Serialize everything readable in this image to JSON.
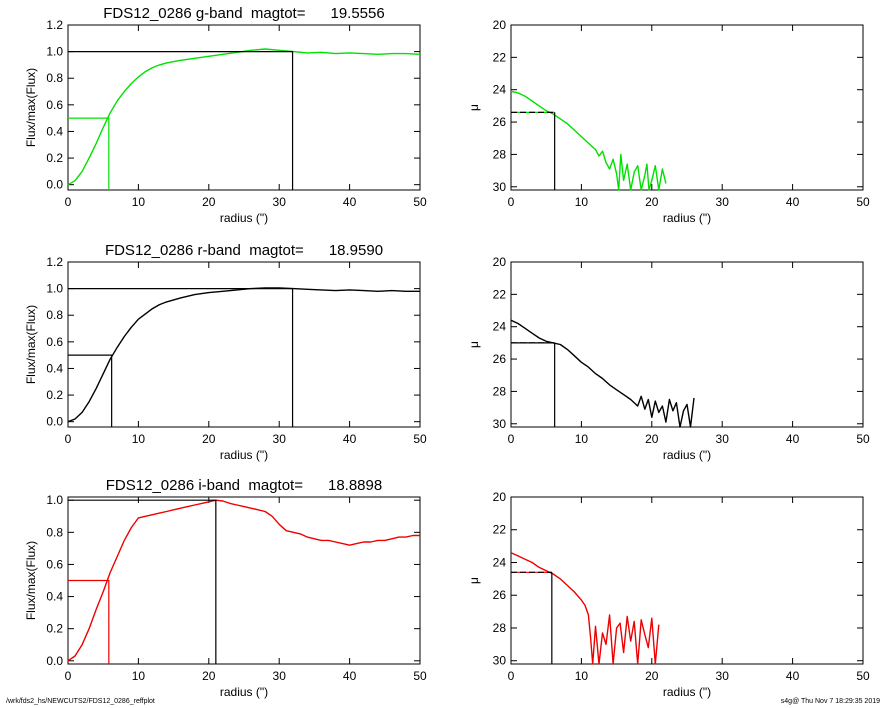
{
  "footer": {
    "left": "/wrk/fds2_hs/NEWCUTS2/FDS12_0286_reffplot",
    "right": "s4g@  Thu Nov  7 18:29:35 2019"
  },
  "chart_data": [
    {
      "type": "line",
      "panel": "growth-g",
      "title": "FDS12_0286 g-band  magtot=      19.5556",
      "color": "#00e000",
      "xlabel": "radius (\")",
      "ylabel": "Flux/max(Flux)",
      "xlim": [
        0,
        50
      ],
      "ylim": [
        -0.04,
        1.2
      ],
      "xticks": [
        "0",
        "10",
        "20",
        "30",
        "40",
        "50"
      ],
      "yticks": [
        "0.0",
        "0.2",
        "0.4",
        "0.6",
        "0.8",
        "1.0",
        "1.2"
      ],
      "xtick_values": [
        0,
        10,
        20,
        30,
        40,
        50
      ],
      "ytick_values": [
        0,
        0.2,
        0.4,
        0.6,
        0.8,
        1.0,
        1.2
      ],
      "series": [
        {
          "x": [
            0,
            1,
            2,
            3,
            4,
            5,
            6,
            7,
            8,
            9,
            10,
            11,
            12,
            13,
            14,
            16,
            18,
            20,
            22,
            24,
            26,
            28,
            30,
            32,
            34,
            36,
            38,
            40,
            42,
            44,
            46,
            48,
            50
          ],
          "values": [
            0,
            0.03,
            0.1,
            0.2,
            0.31,
            0.43,
            0.54,
            0.63,
            0.7,
            0.76,
            0.81,
            0.85,
            0.88,
            0.9,
            0.915,
            0.935,
            0.95,
            0.965,
            0.98,
            0.995,
            1.01,
            1.02,
            1.01,
            1.0,
            0.99,
            0.995,
            0.985,
            0.99,
            0.985,
            0.98,
            0.985,
            0.985,
            0.98
          ]
        }
      ],
      "half_light": {
        "radius": 5.8,
        "flux": 0.5
      },
      "total": {
        "radius": 31.9,
        "flux": 1.0
      }
    },
    {
      "type": "line",
      "panel": "profile-g",
      "title": "",
      "color": "#00e000",
      "xlabel": "radius (\")",
      "ylabel": "μ",
      "xlim": [
        0,
        50
      ],
      "ylim": [
        30.2,
        20
      ],
      "xticks": [
        "0",
        "10",
        "20",
        "30",
        "40",
        "50"
      ],
      "yticks": [
        "20",
        "22",
        "24",
        "26",
        "28",
        "30"
      ],
      "xtick_values": [
        0,
        10,
        20,
        30,
        40,
        50
      ],
      "ytick_values": [
        20,
        22,
        24,
        26,
        28,
        30
      ],
      "series": [
        {
          "x": [
            0,
            1,
            2,
            3,
            4,
            5,
            5.5,
            6,
            7,
            8,
            9,
            10,
            11,
            12,
            12.5,
            13,
            13.5,
            14,
            14.5,
            15,
            15.3,
            15.6,
            16,
            16.5,
            17,
            17.5,
            18,
            18.5,
            19,
            19.3,
            19.6,
            20,
            20.5,
            21,
            21.5,
            22
          ],
          "values": [
            24.1,
            24.2,
            24.4,
            24.7,
            25.0,
            25.3,
            25.4,
            25.5,
            25.8,
            26.1,
            26.5,
            26.9,
            27.3,
            27.7,
            28.1,
            27.8,
            28.5,
            28.9,
            28.3,
            29.2,
            30.2,
            28.0,
            29.6,
            28.6,
            30.2,
            29.1,
            28.7,
            30.2,
            29.3,
            28.6,
            30.2,
            29.6,
            28.7,
            30.2,
            28.9,
            29.8
          ]
        }
      ],
      "half_light": {
        "radius": 6.2,
        "mu": 25.4
      },
      "mean_line": {
        "x0": 0,
        "x1": 6.2,
        "mu": 25.4
      }
    },
    {
      "type": "line",
      "panel": "growth-r",
      "title": "FDS12_0286 r-band  magtot=      18.9590",
      "color": "#000000",
      "xlabel": "radius (\")",
      "ylabel": "Flux/max(Flux)",
      "xlim": [
        0,
        50
      ],
      "ylim": [
        -0.04,
        1.2
      ],
      "xticks": [
        "0",
        "10",
        "20",
        "30",
        "40",
        "50"
      ],
      "yticks": [
        "0.0",
        "0.2",
        "0.4",
        "0.6",
        "0.8",
        "1.0",
        "1.2"
      ],
      "xtick_values": [
        0,
        10,
        20,
        30,
        40,
        50
      ],
      "ytick_values": [
        0,
        0.2,
        0.4,
        0.6,
        0.8,
        1.0,
        1.2
      ],
      "series": [
        {
          "x": [
            0,
            1,
            2,
            3,
            4,
            5,
            6,
            7,
            8,
            9,
            10,
            11,
            12,
            13,
            14,
            16,
            18,
            20,
            22,
            24,
            26,
            28,
            30,
            32,
            34,
            36,
            38,
            40,
            42,
            44,
            46,
            48,
            50
          ],
          "values": [
            0,
            0.02,
            0.07,
            0.15,
            0.25,
            0.36,
            0.47,
            0.56,
            0.64,
            0.71,
            0.77,
            0.81,
            0.85,
            0.88,
            0.9,
            0.93,
            0.955,
            0.97,
            0.98,
            0.99,
            1.0,
            1.005,
            1.005,
            1.0,
            0.995,
            0.99,
            0.985,
            0.99,
            0.985,
            0.98,
            0.985,
            0.98,
            0.98
          ]
        }
      ],
      "half_light": {
        "radius": 6.2,
        "flux": 0.5
      },
      "total": {
        "radius": 31.9,
        "flux": 1.0
      }
    },
    {
      "type": "line",
      "panel": "profile-r",
      "title": "",
      "color": "#000000",
      "xlabel": "radius (\")",
      "ylabel": "μ",
      "xlim": [
        0,
        50
      ],
      "ylim": [
        30.2,
        20
      ],
      "xticks": [
        "0",
        "10",
        "20",
        "30",
        "40",
        "50"
      ],
      "yticks": [
        "20",
        "22",
        "24",
        "26",
        "28",
        "30"
      ],
      "xtick_values": [
        0,
        10,
        20,
        30,
        40,
        50
      ],
      "ytick_values": [
        20,
        22,
        24,
        26,
        28,
        30
      ],
      "series": [
        {
          "x": [
            0,
            1,
            2,
            3,
            4,
            5,
            6,
            7,
            8,
            9,
            10,
            11,
            12,
            13,
            14,
            15,
            16,
            17,
            18,
            18.5,
            19,
            19.5,
            20,
            20.5,
            21,
            21.5,
            22,
            22.5,
            23,
            23.5,
            24,
            24.5,
            25,
            25.5,
            26
          ],
          "values": [
            23.6,
            23.8,
            24.1,
            24.4,
            24.7,
            24.9,
            25.0,
            25.1,
            25.4,
            25.8,
            26.2,
            26.5,
            26.9,
            27.2,
            27.6,
            27.9,
            28.2,
            28.5,
            28.9,
            28.3,
            29.1,
            28.5,
            29.6,
            28.6,
            29.3,
            28.9,
            29.9,
            28.5,
            29.2,
            28.7,
            30.2,
            29.2,
            28.8,
            30.2,
            28.4
          ]
        }
      ],
      "half_light": {
        "radius": 6.2,
        "mu": 25.0
      },
      "mean_line": {
        "x0": 0,
        "x1": 6.2,
        "mu": 25.0
      }
    },
    {
      "type": "line",
      "panel": "growth-i",
      "title": "FDS12_0286 i-band  magtot=      18.8898",
      "color": "#ee0000",
      "xlabel": "radius (\")",
      "ylabel": "Flux/max(Flux)",
      "xlim": [
        0,
        50
      ],
      "ylim": [
        -0.02,
        1.02
      ],
      "xticks": [
        "0",
        "10",
        "20",
        "30",
        "40",
        "50"
      ],
      "yticks": [
        "0.0",
        "0.2",
        "0.4",
        "0.6",
        "0.8",
        "1.0"
      ],
      "xtick_values": [
        0,
        10,
        20,
        30,
        40,
        50
      ],
      "ytick_values": [
        0,
        0.2,
        0.4,
        0.6,
        0.8,
        1.0
      ],
      "series": [
        {
          "x": [
            0,
            1,
            2,
            3,
            4,
            5,
            6,
            7,
            8,
            9,
            10,
            11,
            12,
            13,
            14,
            15,
            16,
            17,
            18,
            19,
            20,
            21,
            22,
            23,
            24,
            25,
            26,
            27,
            28,
            29,
            30,
            31,
            32,
            33,
            34,
            35,
            36,
            37,
            38,
            39,
            40,
            41,
            42,
            43,
            44,
            45,
            46,
            47,
            48,
            49,
            50
          ],
          "values": [
            0,
            0.03,
            0.1,
            0.2,
            0.32,
            0.43,
            0.55,
            0.65,
            0.75,
            0.83,
            0.89,
            0.9,
            0.91,
            0.92,
            0.93,
            0.94,
            0.95,
            0.96,
            0.97,
            0.98,
            0.99,
            1.0,
            0.995,
            0.98,
            0.97,
            0.96,
            0.95,
            0.94,
            0.93,
            0.9,
            0.85,
            0.81,
            0.8,
            0.79,
            0.77,
            0.76,
            0.75,
            0.75,
            0.74,
            0.73,
            0.72,
            0.73,
            0.74,
            0.74,
            0.75,
            0.75,
            0.76,
            0.77,
            0.77,
            0.78,
            0.78
          ]
        }
      ],
      "half_light": {
        "radius": 5.8,
        "flux": 0.5
      },
      "total": {
        "radius": 21.0,
        "flux": 1.0
      }
    },
    {
      "type": "line",
      "panel": "profile-i",
      "title": "",
      "color": "#ee0000",
      "xlabel": "radius (\")",
      "ylabel": "μ",
      "xlim": [
        0,
        50
      ],
      "ylim": [
        30.2,
        20
      ],
      "xticks": [
        "0",
        "10",
        "20",
        "30",
        "40",
        "50"
      ],
      "yticks": [
        "20",
        "22",
        "24",
        "26",
        "28",
        "30"
      ],
      "xtick_values": [
        0,
        10,
        20,
        30,
        40,
        50
      ],
      "ytick_values": [
        20,
        22,
        24,
        26,
        28,
        30
      ],
      "series": [
        {
          "x": [
            0,
            1,
            2,
            3,
            4,
            5,
            6,
            7,
            8,
            9,
            10,
            10.5,
            11,
            11.3,
            11.6,
            12,
            12.5,
            13,
            13.5,
            14,
            14.5,
            15,
            15.5,
            16,
            16.5,
            17,
            17.5,
            18,
            18.5,
            19,
            19.5,
            20,
            20.5,
            21
          ],
          "values": [
            23.4,
            23.6,
            23.8,
            24.0,
            24.3,
            24.5,
            24.7,
            25.0,
            25.4,
            25.8,
            26.3,
            26.6,
            27.2,
            28.6,
            30.2,
            27.9,
            30.2,
            28.3,
            29.0,
            27.2,
            30.2,
            28.0,
            27.7,
            29.5,
            27.3,
            28.8,
            27.6,
            30.2,
            27.5,
            28.4,
            29.2,
            27.4,
            30.2,
            27.8
          ]
        }
      ],
      "half_light": {
        "radius": 5.8,
        "mu": 24.6
      },
      "mean_line": {
        "x0": 0,
        "x1": 5.8,
        "mu": 24.6
      }
    }
  ]
}
